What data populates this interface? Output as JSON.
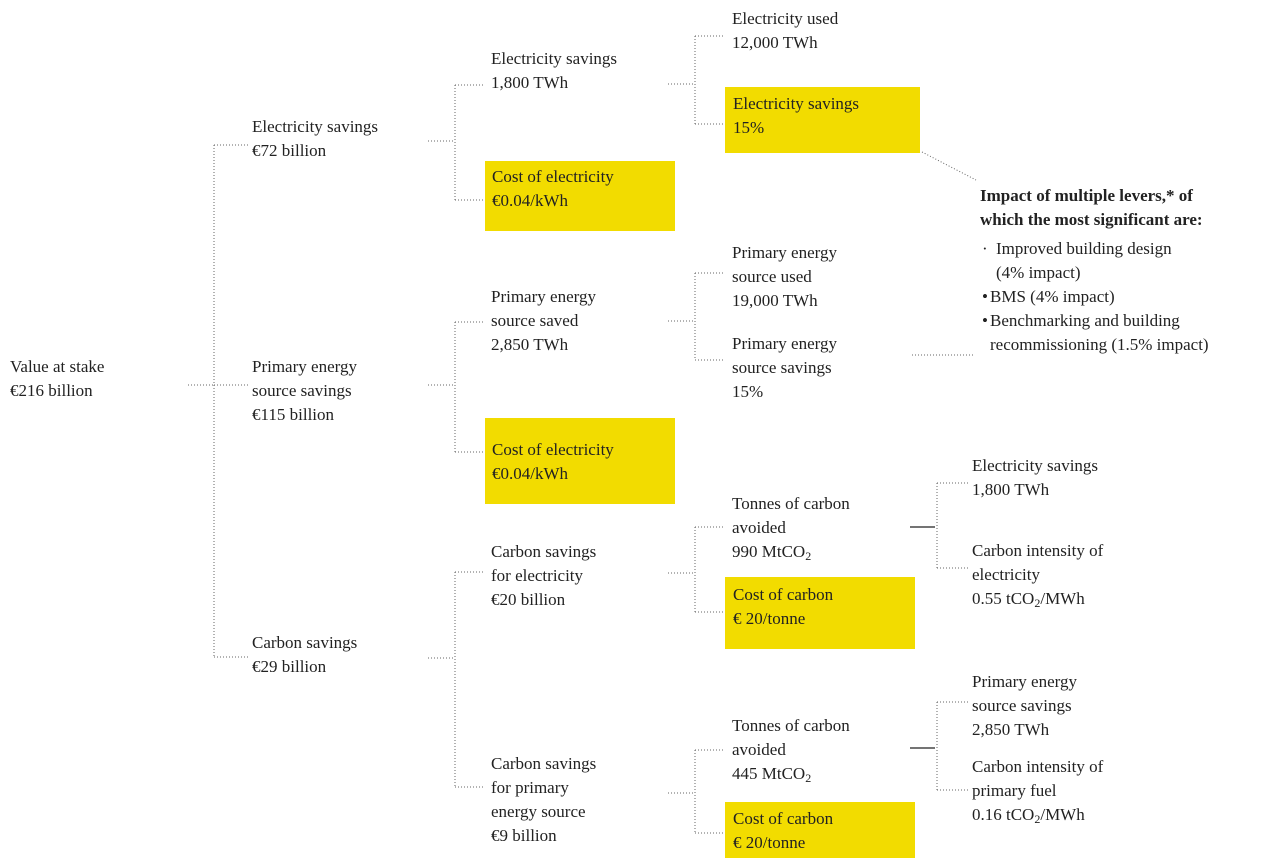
{
  "nodes": [
    {
      "lines": [
        "Value at stake",
        "€216 billion"
      ]
    },
    {
      "lines": [
        "Electricity savings",
        "€72 billion"
      ]
    },
    {
      "lines": [
        "Primary energy",
        "source savings",
        "€115 billion"
      ]
    },
    {
      "lines": [
        "Carbon savings",
        "€29 billion"
      ]
    },
    {
      "lines": [
        "Electricity savings",
        "1,800 TWh"
      ]
    },
    {
      "lines": [
        "Cost of electricity",
        "€0.04/kWh"
      ],
      "highlight": true
    },
    {
      "lines": [
        "Primary energy",
        "source saved",
        "2,850 TWh"
      ]
    },
    {
      "lines": [
        "Cost of electricity",
        "€0.04/kWh"
      ],
      "highlight": true
    },
    {
      "lines": [
        "Carbon savings",
        "for electricity",
        "€20 billion"
      ]
    },
    {
      "lines": [
        "Carbon savings",
        "for primary",
        "energy source",
        "€9 billion"
      ]
    },
    {
      "lines": [
        "Electricity used",
        "12,000 TWh"
      ]
    },
    {
      "lines": [
        "Electricity savings",
        "15%"
      ],
      "highlight": true
    },
    {
      "lines": [
        "Primary energy",
        "source used",
        "19,000 TWh"
      ]
    },
    {
      "lines": [
        "Primary energy",
        "source savings",
        "15%"
      ]
    },
    {
      "lines": [
        "Tonnes of carbon",
        "avoided",
        {
          "main": "990 MtCO",
          "sub": "2"
        }
      ]
    },
    {
      "lines": [
        "Cost of carbon",
        "€ 20/tonne"
      ],
      "highlight": true
    },
    {
      "lines": [
        "Tonnes of carbon",
        "avoided",
        {
          "main": "445 MtCO",
          "sub": "2"
        }
      ]
    },
    {
      "lines": [
        "Cost of carbon",
        "€ 20/tonne"
      ],
      "highlight": true
    },
    {
      "lines": [
        "Electricity savings",
        "1,800 TWh"
      ]
    },
    {
      "lines": [
        "Carbon intensity of",
        "electricity",
        {
          "main": "0.55 tCO",
          "sub": "2",
          "rest": "/MWh"
        }
      ]
    },
    {
      "lines": [
        "Primary energy",
        "source savings",
        "2,850 TWh"
      ]
    },
    {
      "lines": [
        "Carbon intensity of",
        "primary fuel",
        {
          "main": "0.16 tCO",
          "sub": "2",
          "rest": "/MWh"
        }
      ]
    }
  ],
  "callout": {
    "title": [
      "Impact of multiple levers,* of",
      "which the most significant are:"
    ],
    "bullets": [
      {
        "mark": "·",
        "lines": [
          "Improved building design",
          "(4% impact)"
        ]
      },
      {
        "mark": "•",
        "lines": [
          "BMS (4% impact)"
        ]
      },
      {
        "mark": "•",
        "lines": [
          "Benchmarking and building",
          "recommissioning (1.5% impact)"
        ]
      }
    ]
  }
}
